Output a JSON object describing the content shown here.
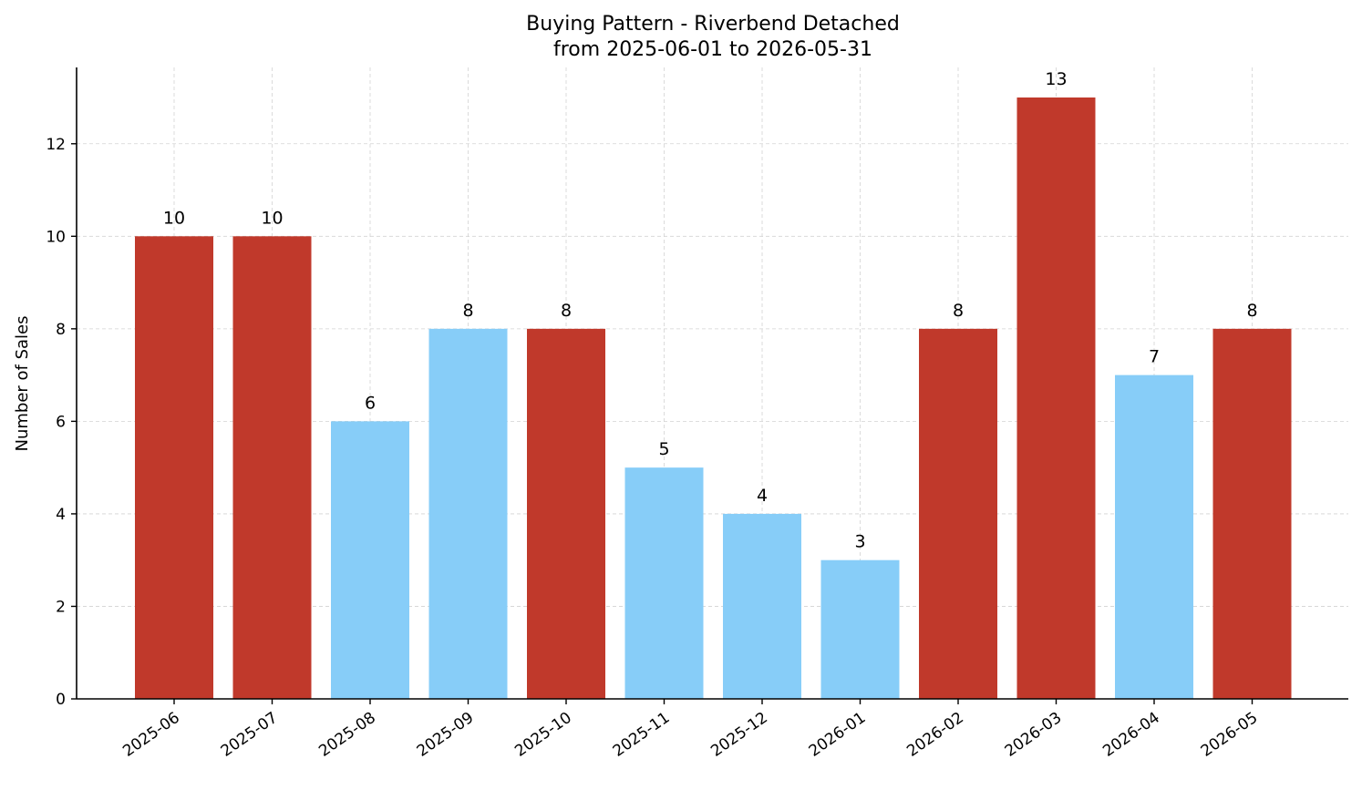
{
  "chart_data": {
    "type": "bar",
    "title": "Buying Pattern - Riverbend Detached",
    "subtitle": "from 2025-06-01 to 2026-05-31",
    "xlabel": "",
    "ylabel": "Number of Sales",
    "categories": [
      "2025-06",
      "2025-07",
      "2025-08",
      "2025-09",
      "2025-10",
      "2025-11",
      "2025-12",
      "2026-01",
      "2026-02",
      "2026-03",
      "2026-04",
      "2026-05"
    ],
    "values": [
      10,
      10,
      6,
      8,
      8,
      5,
      4,
      3,
      8,
      13,
      7,
      8
    ],
    "bar_colors": [
      "#c0392b",
      "#c0392b",
      "#87cdf8",
      "#87cdf8",
      "#c0392b",
      "#87cdf8",
      "#87cdf8",
      "#87cdf8",
      "#c0392b",
      "#c0392b",
      "#87cdf8",
      "#c0392b"
    ],
    "ylim": [
      0,
      13.65
    ],
    "yticks": [
      0,
      2,
      4,
      6,
      8,
      10,
      12
    ],
    "grid": true,
    "legend": "none"
  }
}
